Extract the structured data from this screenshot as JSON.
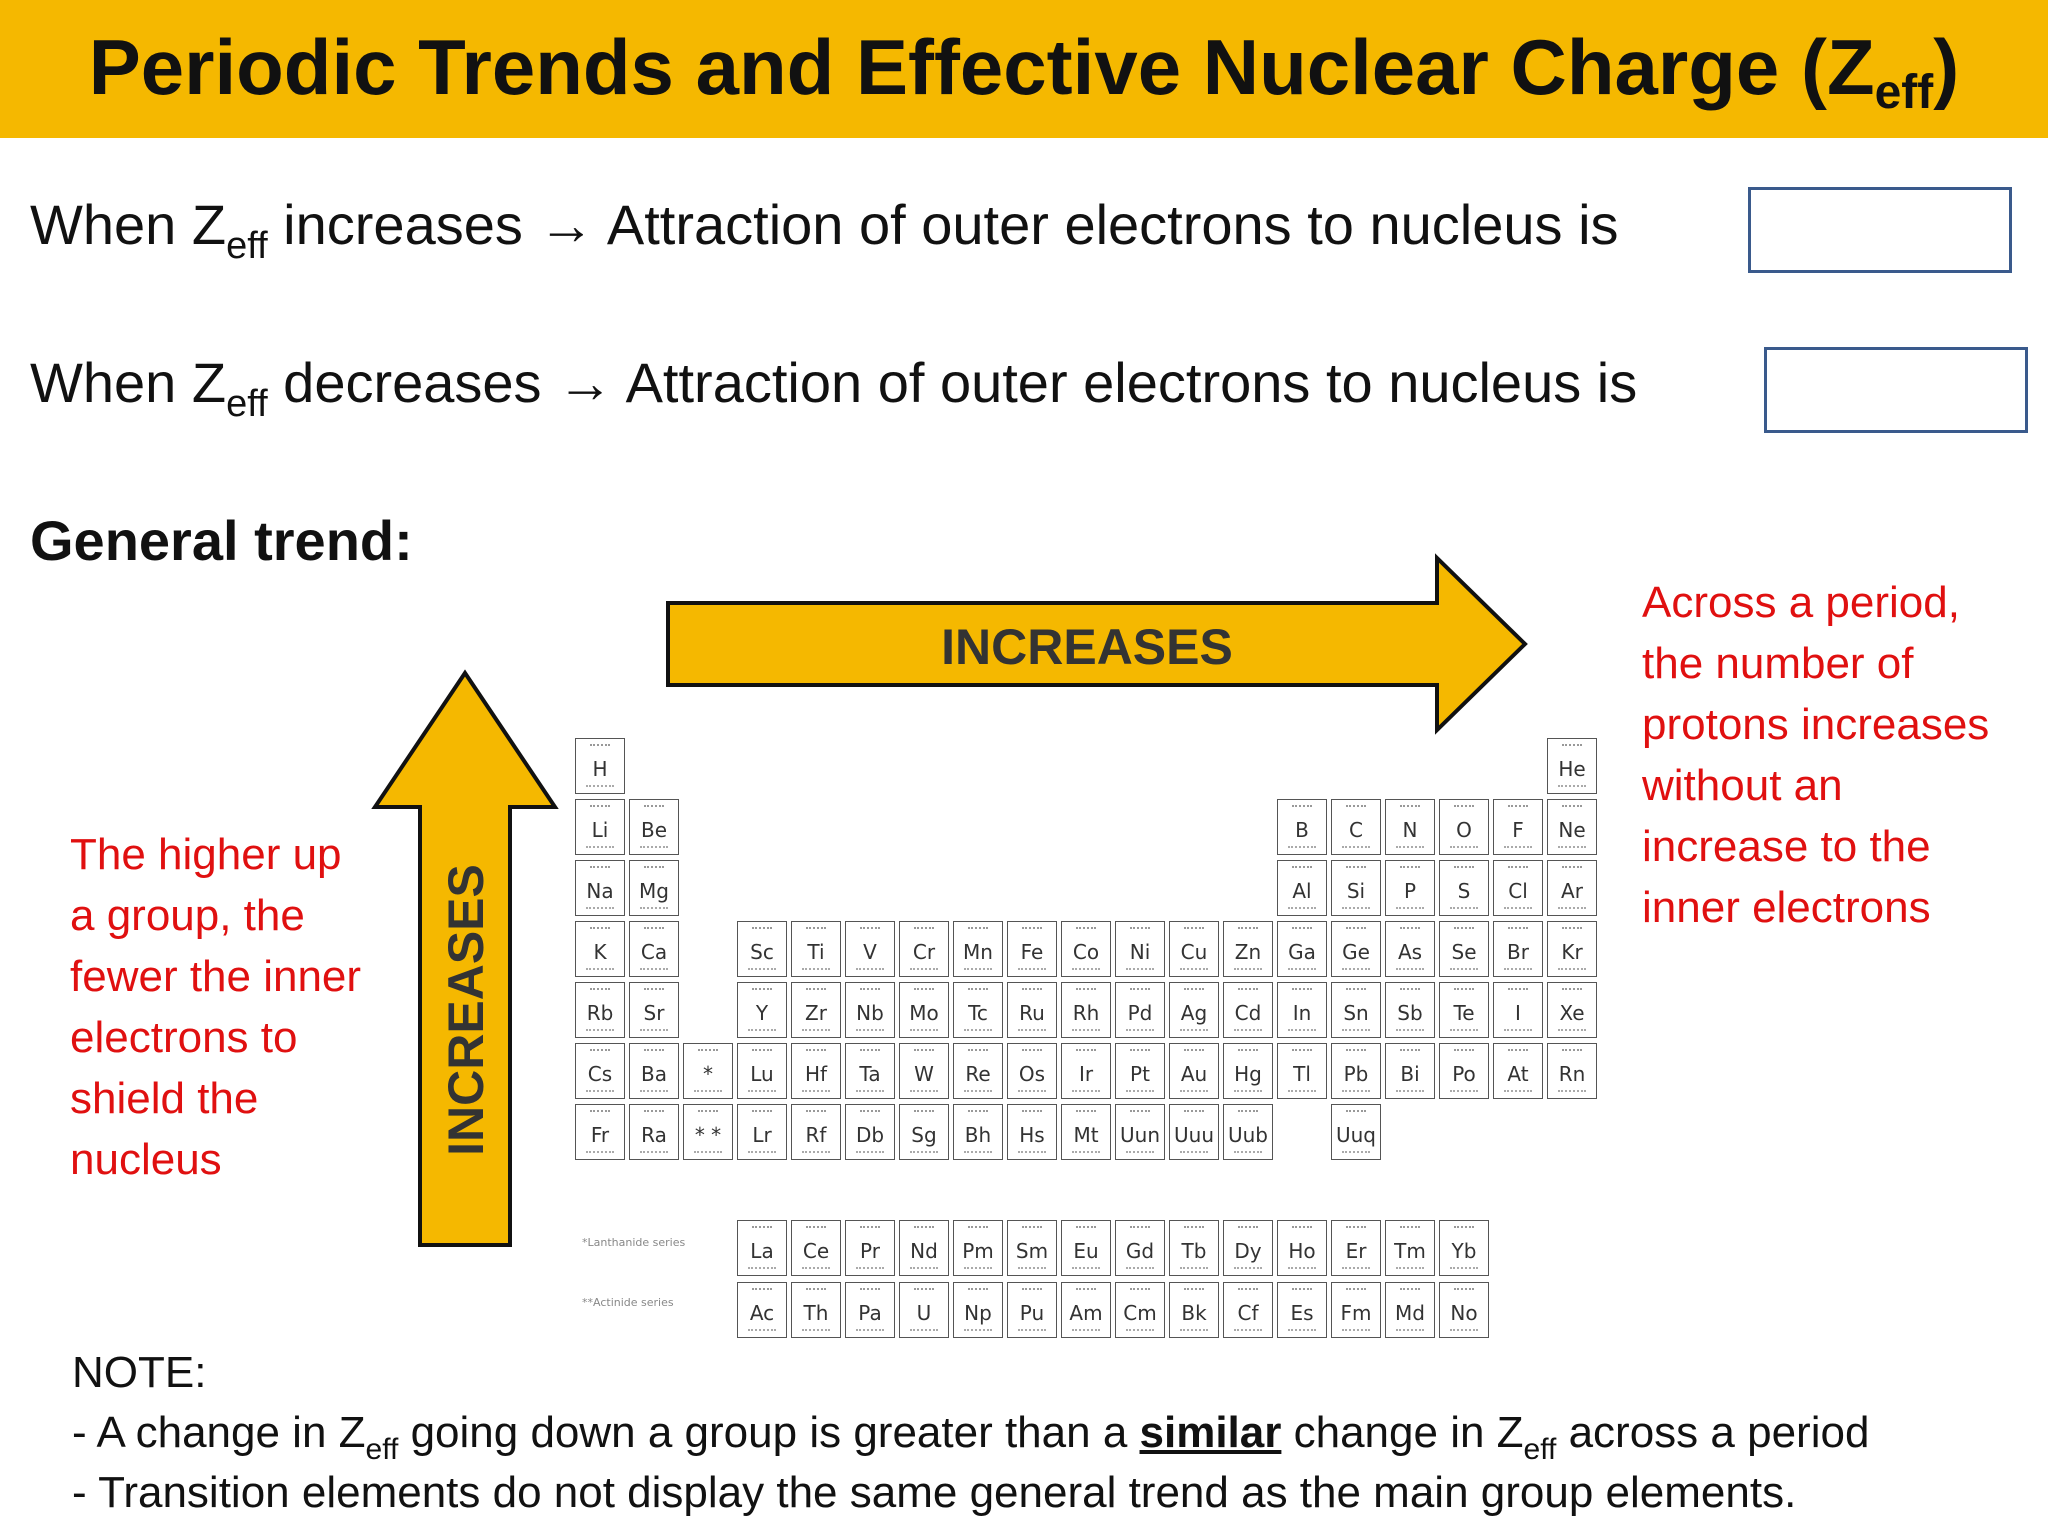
{
  "header": {
    "title_main": "Periodic Trends and Effective Nuclear Charge (Z",
    "title_sub": "eff",
    "title_end": ")"
  },
  "statements": [
    {
      "lead": "When Z",
      "sub": "eff",
      "rest": " increases → Attraction of outer electrons to nucleus is"
    },
    {
      "lead": "When Z",
      "sub": "eff",
      "rest": " decreases → Attraction of outer electrons to nucleus is"
    }
  ],
  "general_trend": "General trend:",
  "arrows": {
    "horizontal_label": "INCREASES",
    "vertical_label": "INCREASES",
    "color": "#f5b800"
  },
  "notes": {
    "period": [
      "Across a period,",
      "the number of",
      "protons increases",
      "without an",
      "increase to the",
      "inner electrons"
    ],
    "group": [
      "The higher up",
      "a group, the",
      "fewer the inner",
      "electrons to",
      "shield the",
      "nucleus"
    ]
  },
  "periodic_table": {
    "main": [
      [
        "H",
        "",
        "",
        "",
        "",
        "",
        "",
        "",
        "",
        "",
        "",
        "",
        "",
        "",
        "",
        "",
        "",
        "He"
      ],
      [
        "Li",
        "Be",
        "",
        "",
        "",
        "",
        "",
        "",
        "",
        "",
        "",
        "",
        "B",
        "C",
        "N",
        "O",
        "F",
        "Ne"
      ],
      [
        "Na",
        "Mg",
        "",
        "",
        "",
        "",
        "",
        "",
        "",
        "",
        "",
        "",
        "Al",
        "Si",
        "P",
        "S",
        "Cl",
        "Ar"
      ],
      [
        "K",
        "Ca",
        "Sc",
        "Ti",
        "V",
        "Cr",
        "Mn",
        "Fe",
        "Co",
        "Ni",
        "Cu",
        "Zn",
        "Ga",
        "Ge",
        "As",
        "Se",
        "Br",
        "Kr"
      ],
      [
        "Rb",
        "Sr",
        "Y",
        "Zr",
        "Nb",
        "Mo",
        "Tc",
        "Ru",
        "Rh",
        "Pd",
        "Ag",
        "Cd",
        "In",
        "Sn",
        "Sb",
        "Te",
        "I",
        "Xe"
      ],
      [
        "Cs",
        "Ba",
        "Lu",
        "Hf",
        "Ta",
        "W",
        "Re",
        "Os",
        "Ir",
        "Pt",
        "Au",
        "Hg",
        "Tl",
        "Pb",
        "Bi",
        "Po",
        "At",
        "Rn"
      ],
      [
        "Fr",
        "Ra",
        "Lr",
        "Rf",
        "Db",
        "Sg",
        "Bh",
        "Hs",
        "Mt",
        "Uun",
        "Uuu",
        "Uub",
        "",
        "Uuq",
        "",
        "",
        "",
        ""
      ]
    ],
    "placeholders": [
      "*",
      "* *"
    ],
    "lanthanides": [
      "La",
      "Ce",
      "Pr",
      "Nd",
      "Pm",
      "Sm",
      "Eu",
      "Gd",
      "Tb",
      "Dy",
      "Ho",
      "Er",
      "Tm",
      "Yb"
    ],
    "actinides": [
      "Ac",
      "Th",
      "Pa",
      "U",
      "Np",
      "Pu",
      "Am",
      "Cm",
      "Bk",
      "Cf",
      "Es",
      "Fm",
      "Md",
      "No"
    ],
    "series_labels": [
      "*Lanthanide series",
      "**Actinide series"
    ]
  },
  "footer": {
    "heading": "NOTE:",
    "line1": {
      "a": "- A change in Z",
      "sub1": "eff",
      "b": " going down a group is greater than a ",
      "emph": "similar",
      "c": " change in Z",
      "sub2": "eff",
      "d": " across a period"
    },
    "line2": "- Transition elements do not display the same general trend as the main group elements."
  }
}
